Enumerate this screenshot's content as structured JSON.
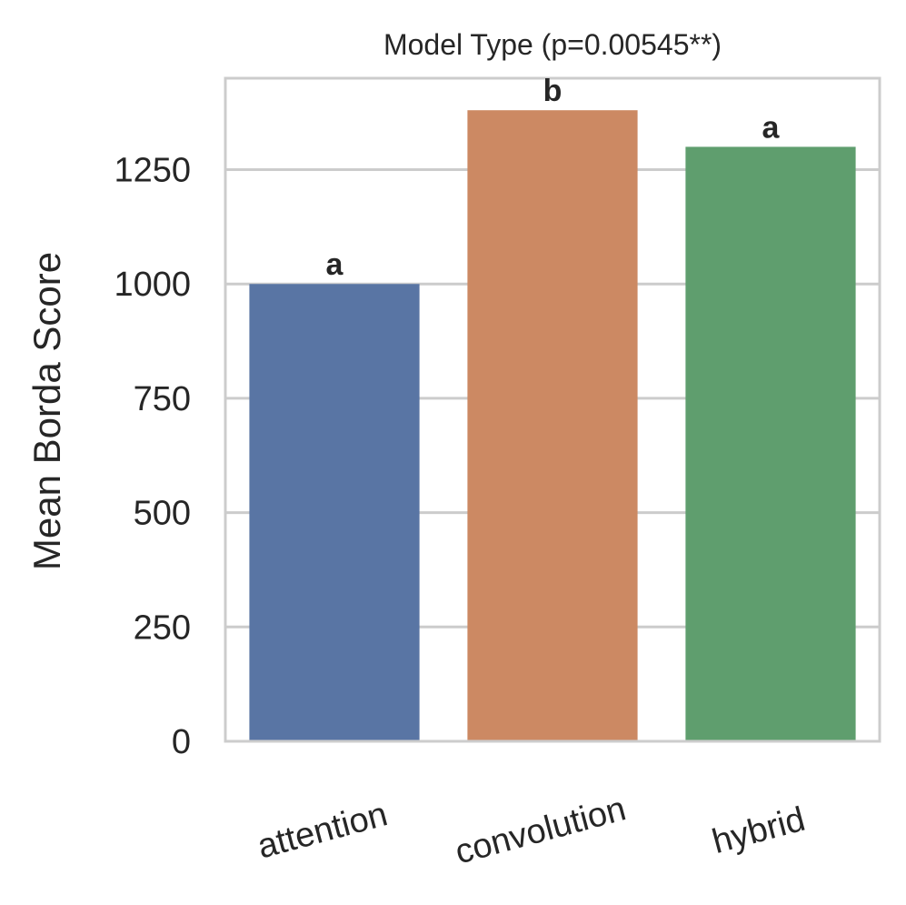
{
  "chart_data": {
    "type": "bar",
    "title": "Model Type  (p=0.00545**)",
    "xlabel": "",
    "ylabel": "Mean Borda Score",
    "categories": [
      "attention",
      "convolution",
      "hybrid"
    ],
    "values": [
      1000,
      1380,
      1300
    ],
    "significance_labels": [
      "a",
      "b",
      "a"
    ],
    "colors": [
      "#5975a4",
      "#cc8963",
      "#5f9e6e"
    ],
    "ylim": [
      0,
      1450
    ],
    "yticks": [
      0,
      250,
      500,
      750,
      1000,
      1250
    ],
    "grid": true,
    "legend": "none"
  }
}
